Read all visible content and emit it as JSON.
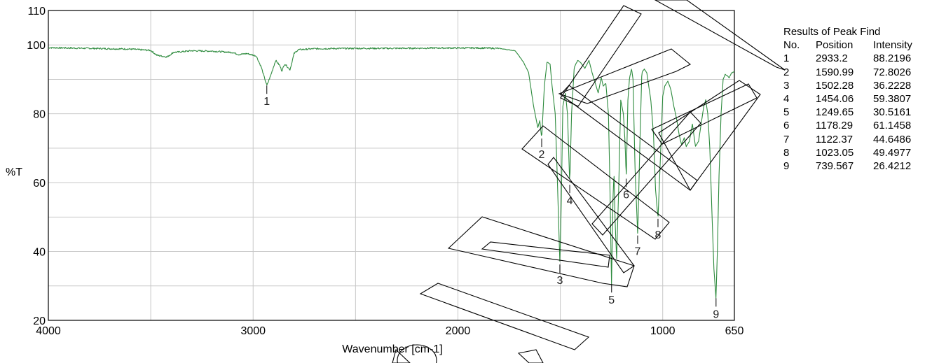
{
  "chart_data": {
    "type": "line",
    "x_axis": {
      "label": "Wavenumber [cm-1]",
      "range": [
        4000,
        650
      ],
      "reversed": true,
      "ticks": [
        4000,
        3000,
        2000,
        1000,
        650
      ]
    },
    "y_axis": {
      "label": "%T",
      "range": [
        20,
        110
      ],
      "ticks": [
        20,
        40,
        60,
        80,
        100,
        110
      ]
    },
    "grid": true,
    "line_color": "#2e8b3e",
    "spectrum": {
      "baseline": 99.2,
      "points": [
        [
          4000,
          99.2
        ],
        [
          3800,
          99.0
        ],
        [
          3600,
          98.8
        ],
        [
          3500,
          98.4
        ],
        [
          3470,
          97.0
        ],
        [
          3420,
          96.5
        ],
        [
          3390,
          97.8
        ],
        [
          3300,
          98.3
        ],
        [
          3200,
          98.2
        ],
        [
          3100,
          97.8
        ],
        [
          3070,
          97.2
        ],
        [
          3030,
          97.5
        ],
        [
          2985,
          96.8
        ],
        [
          2960,
          93.5
        ],
        [
          2945,
          90.5
        ],
        [
          2933,
          88.2
        ],
        [
          2915,
          91.0
        ],
        [
          2890,
          95.5
        ],
        [
          2870,
          94.0
        ],
        [
          2860,
          92.5
        ],
        [
          2845,
          94.5
        ],
        [
          2820,
          92.8
        ],
        [
          2800,
          97.5
        ],
        [
          2780,
          98.6
        ],
        [
          2700,
          98.9
        ],
        [
          2500,
          99.0
        ],
        [
          2300,
          99.0
        ],
        [
          2100,
          99.1
        ],
        [
          1900,
          99.1
        ],
        [
          1800,
          99.0
        ],
        [
          1720,
          98.3
        ],
        [
          1680,
          95.0
        ],
        [
          1655,
          92.0
        ],
        [
          1630,
          82.0
        ],
        [
          1610,
          76.0
        ],
        [
          1600,
          78.0
        ],
        [
          1591,
          72.8
        ],
        [
          1578,
          88.0
        ],
        [
          1565,
          95.0
        ],
        [
          1550,
          94.5
        ],
        [
          1540,
          88.0
        ],
        [
          1525,
          80.0
        ],
        [
          1515,
          62.0
        ],
        [
          1502,
          36.2
        ],
        [
          1495,
          55.0
        ],
        [
          1488,
          82.0
        ],
        [
          1475,
          86.0
        ],
        [
          1465,
          80.0
        ],
        [
          1454,
          59.4
        ],
        [
          1445,
          80.0
        ],
        [
          1432,
          93.5
        ],
        [
          1415,
          95.5
        ],
        [
          1400,
          94.8
        ],
        [
          1380,
          93.2
        ],
        [
          1360,
          95.5
        ],
        [
          1345,
          92.0
        ],
        [
          1330,
          89.0
        ],
        [
          1315,
          86.0
        ],
        [
          1300,
          90.5
        ],
        [
          1290,
          88.0
        ],
        [
          1278,
          89.0
        ],
        [
          1265,
          80.0
        ],
        [
          1258,
          60.0
        ],
        [
          1250,
          30.5
        ],
        [
          1243,
          55.0
        ],
        [
          1238,
          63.0
        ],
        [
          1232,
          48.0
        ],
        [
          1225,
          38.0
        ],
        [
          1215,
          58.0
        ],
        [
          1205,
          84.0
        ],
        [
          1192,
          80.0
        ],
        [
          1184,
          72.0
        ],
        [
          1178,
          61.1
        ],
        [
          1170,
          84.0
        ],
        [
          1162,
          90.5
        ],
        [
          1152,
          93.0
        ],
        [
          1145,
          90.0
        ],
        [
          1135,
          64.0
        ],
        [
          1122,
          44.6
        ],
        [
          1112,
          70.0
        ],
        [
          1102,
          92.0
        ],
        [
          1090,
          93.0
        ],
        [
          1078,
          92.0
        ],
        [
          1068,
          88.0
        ],
        [
          1058,
          84.0
        ],
        [
          1045,
          74.0
        ],
        [
          1035,
          58.0
        ],
        [
          1023,
          49.5
        ],
        [
          1012,
          66.0
        ],
        [
          1000,
          85.0
        ],
        [
          990,
          88.0
        ],
        [
          975,
          89.5
        ],
        [
          960,
          87.0
        ],
        [
          945,
          82.0
        ],
        [
          932,
          78.5
        ],
        [
          920,
          74.0
        ],
        [
          908,
          71.0
        ],
        [
          895,
          73.0
        ],
        [
          885,
          70.5
        ],
        [
          870,
          72.0
        ],
        [
          855,
          77.0
        ],
        [
          840,
          70.5
        ],
        [
          825,
          72.0
        ],
        [
          810,
          78.0
        ],
        [
          800,
          82.0
        ],
        [
          790,
          84.0
        ],
        [
          780,
          80.0
        ],
        [
          770,
          70.0
        ],
        [
          760,
          52.0
        ],
        [
          750,
          35.0
        ],
        [
          740,
          26.4
        ],
        [
          733,
          40.0
        ],
        [
          725,
          62.0
        ],
        [
          715,
          80.0
        ],
        [
          705,
          90.0
        ],
        [
          695,
          91.5
        ],
        [
          685,
          91.0
        ],
        [
          675,
          90.5
        ],
        [
          665,
          91.8
        ],
        [
          650,
          92.3
        ]
      ]
    },
    "peak_labels": [
      {
        "no": "1",
        "x": 2933.2,
        "y": 88.2196
      },
      {
        "no": "2",
        "x": 1590.99,
        "y": 72.8026
      },
      {
        "no": "3",
        "x": 1502.28,
        "y": 36.2228
      },
      {
        "no": "4",
        "x": 1454.06,
        "y": 59.3807
      },
      {
        "no": "5",
        "x": 1249.65,
        "y": 30.5161
      },
      {
        "no": "6",
        "x": 1178.29,
        "y": 61.1458
      },
      {
        "no": "7",
        "x": 1122.37,
        "y": 44.6486
      },
      {
        "no": "8",
        "x": 1023.05,
        "y": 49.4977
      },
      {
        "no": "9",
        "x": 739.567,
        "y": 26.4212
      }
    ]
  },
  "peak_table": {
    "title": "Results of Peak Find",
    "headers": [
      "No.",
      "Position",
      "Intensity"
    ],
    "rows": [
      [
        "1",
        "2933.2",
        "88.2196"
      ],
      [
        "2",
        "1590.99",
        "72.8026"
      ],
      [
        "3",
        "1502.28",
        "36.2228"
      ],
      [
        "4",
        "1454.06",
        "59.3807"
      ],
      [
        "5",
        "1249.65",
        "30.5161"
      ],
      [
        "6",
        "1178.29",
        "61.1458"
      ],
      [
        "7",
        "1122.37",
        "44.6486"
      ],
      [
        "8",
        "1023.05",
        "49.4977"
      ],
      [
        "9",
        "739.567",
        "26.4212"
      ]
    ]
  }
}
